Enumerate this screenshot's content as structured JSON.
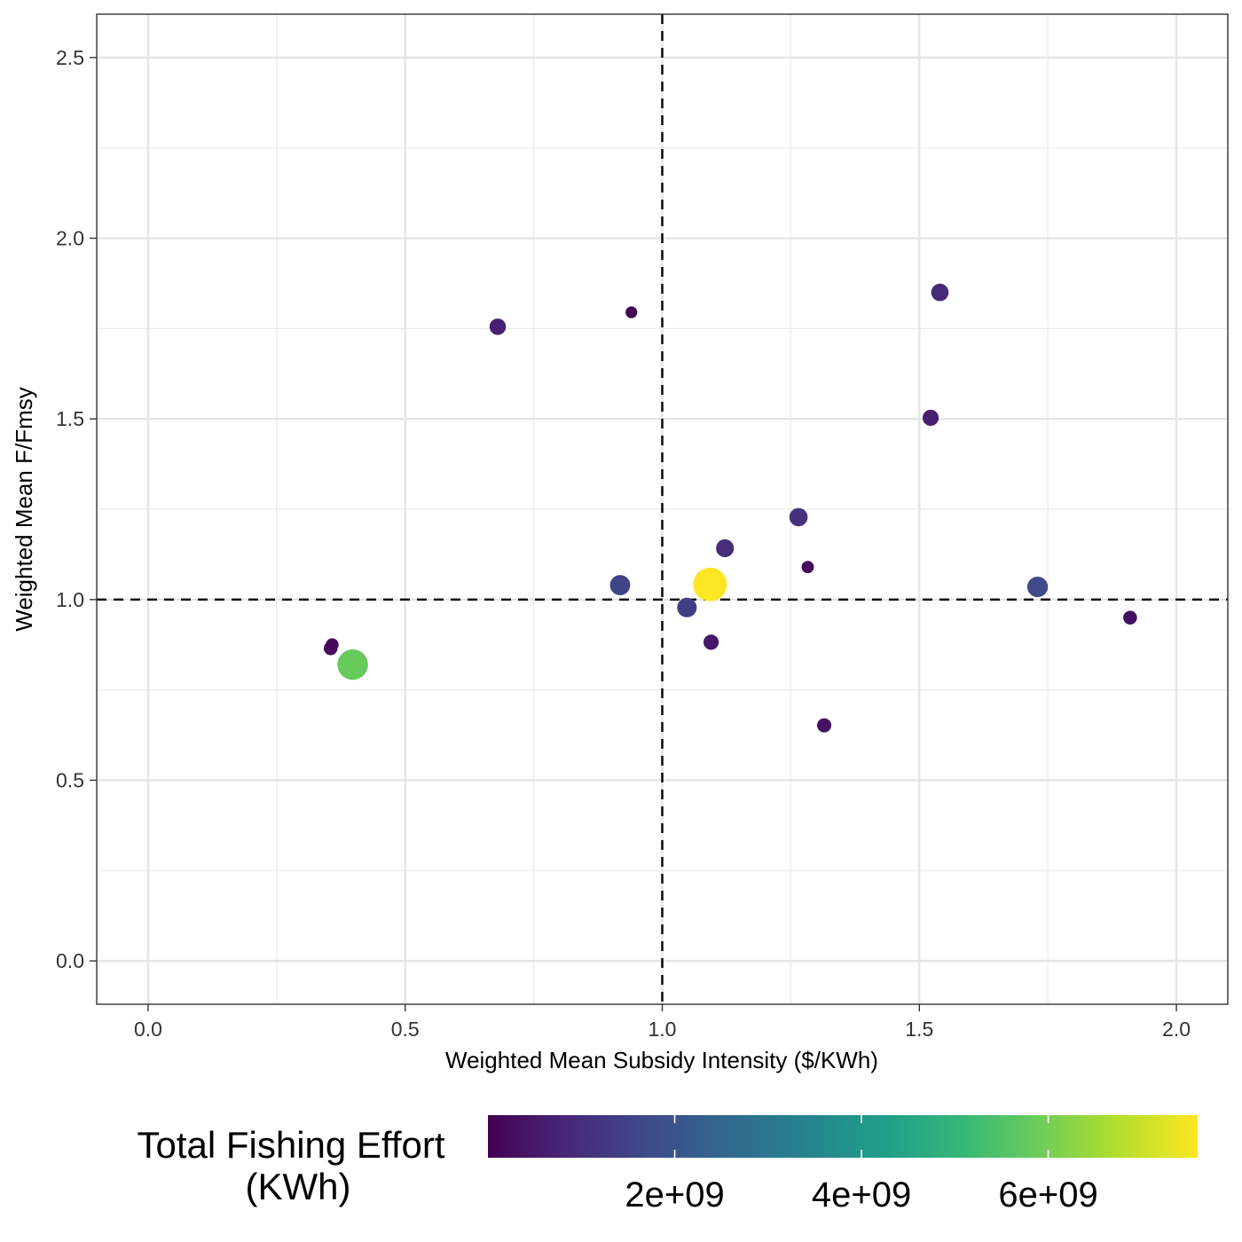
{
  "chart_data": {
    "type": "scatter",
    "xlabel": "Weighted Mean Subsidy Intensity ($/KWh)",
    "ylabel": "Weighted Mean F/Fmsy",
    "xlim": [
      -0.1,
      2.1
    ],
    "ylim": [
      -0.12,
      2.62
    ],
    "x_ticks": [
      "0.0",
      "0.5",
      "1.0",
      "1.5",
      "2.0"
    ],
    "y_ticks": [
      "0.0",
      "0.5",
      "1.0",
      "1.5",
      "2.0",
      "2.5"
    ],
    "grid": true,
    "reference_lines": {
      "x": 1.0,
      "y": 1.0,
      "style": "dashed"
    },
    "color_legend": {
      "title_lines": [
        "Total Fishing Effort",
        "(KWh)"
      ],
      "position": "bottom",
      "range": [
        0,
        7600000000
      ],
      "tick_values": [
        2000000000,
        4000000000,
        6000000000
      ],
      "tick_labels": [
        "2e+09",
        "4e+09",
        "6e+09"
      ],
      "palette": [
        "#440154",
        "#482878",
        "#3E4A89",
        "#31688E",
        "#26828E",
        "#1F9E89",
        "#35B779",
        "#6DCD59",
        "#B4DE2C",
        "#FDE725"
      ]
    },
    "points": [
      {
        "x": 0.355,
        "y": 0.865,
        "effort": 300000000
      },
      {
        "x": 0.358,
        "y": 0.875,
        "effort": 200000000
      },
      {
        "x": 0.398,
        "y": 0.82,
        "effort": 5800000000
      },
      {
        "x": 0.68,
        "y": 1.755,
        "effort": 700000000
      },
      {
        "x": 0.94,
        "y": 1.795,
        "effort": 100000000
      },
      {
        "x": 0.918,
        "y": 1.04,
        "effort": 1600000000
      },
      {
        "x": 1.048,
        "y": 0.978,
        "effort": 1400000000
      },
      {
        "x": 1.093,
        "y": 1.042,
        "effort": 7600000000
      },
      {
        "x": 1.095,
        "y": 0.882,
        "effort": 500000000
      },
      {
        "x": 1.122,
        "y": 1.142,
        "effort": 1000000000
      },
      {
        "x": 1.265,
        "y": 1.228,
        "effort": 1100000000
      },
      {
        "x": 1.283,
        "y": 1.09,
        "effort": 150000000
      },
      {
        "x": 1.315,
        "y": 0.652,
        "effort": 350000000
      },
      {
        "x": 1.522,
        "y": 1.503,
        "effort": 650000000
      },
      {
        "x": 1.54,
        "y": 1.85,
        "effort": 900000000
      },
      {
        "x": 1.73,
        "y": 1.035,
        "effort": 1700000000
      },
      {
        "x": 1.91,
        "y": 0.95,
        "effort": 300000000
      }
    ]
  }
}
